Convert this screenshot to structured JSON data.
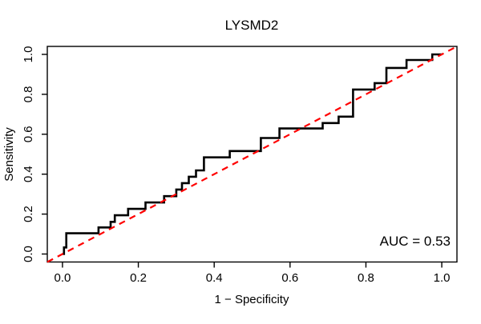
{
  "chart_data": {
    "type": "line",
    "subtype": "roc-step-curve",
    "title": "LYSMD2",
    "xlabel": "1 − Specificity",
    "ylabel": "Sensitivity",
    "xlim": [
      -0.04,
      1.04
    ],
    "ylim": [
      -0.04,
      1.04
    ],
    "grid": false,
    "legend_position": "none",
    "x_ticks": {
      "values": [
        0.0,
        0.2,
        0.4,
        0.6,
        0.8,
        1.0
      ],
      "labels": [
        "0.0",
        "0.2",
        "0.4",
        "0.6",
        "0.8",
        "1.0"
      ]
    },
    "y_ticks": {
      "values": [
        0.0,
        0.2,
        0.4,
        0.6,
        0.8,
        1.0
      ],
      "labels": [
        "0.0",
        "0.2",
        "0.4",
        "0.6",
        "0.8",
        "1.0"
      ]
    },
    "annotation": {
      "text": "AUC = 0.53",
      "anchor": "bottom-right"
    },
    "auc": 0.53,
    "colors": {
      "curve": "#000000",
      "diagonal": "#FF0000",
      "box": "#000000",
      "background": "#FFFFFF"
    },
    "series": [
      {
        "name": "roc-curve",
        "draw": "step",
        "color": "#000000",
        "line_style": "solid",
        "line_width": 2.6,
        "points": [
          [
            0.0,
            0.0
          ],
          [
            0.004,
            0.0
          ],
          [
            0.004,
            0.033
          ],
          [
            0.01,
            0.033
          ],
          [
            0.01,
            0.104
          ],
          [
            0.095,
            0.104
          ],
          [
            0.095,
            0.133
          ],
          [
            0.127,
            0.133
          ],
          [
            0.127,
            0.161
          ],
          [
            0.138,
            0.161
          ],
          [
            0.138,
            0.194
          ],
          [
            0.173,
            0.194
          ],
          [
            0.173,
            0.226
          ],
          [
            0.219,
            0.226
          ],
          [
            0.219,
            0.258
          ],
          [
            0.268,
            0.258
          ],
          [
            0.268,
            0.29
          ],
          [
            0.3,
            0.29
          ],
          [
            0.3,
            0.323
          ],
          [
            0.315,
            0.323
          ],
          [
            0.315,
            0.355
          ],
          [
            0.333,
            0.355
          ],
          [
            0.333,
            0.387
          ],
          [
            0.352,
            0.387
          ],
          [
            0.352,
            0.419
          ],
          [
            0.373,
            0.419
          ],
          [
            0.373,
            0.484
          ],
          [
            0.441,
            0.484
          ],
          [
            0.441,
            0.516
          ],
          [
            0.523,
            0.516
          ],
          [
            0.523,
            0.581
          ],
          [
            0.572,
            0.581
          ],
          [
            0.572,
            0.629
          ],
          [
            0.686,
            0.629
          ],
          [
            0.686,
            0.656
          ],
          [
            0.728,
            0.656
          ],
          [
            0.728,
            0.688
          ],
          [
            0.766,
            0.688
          ],
          [
            0.766,
            0.824
          ],
          [
            0.823,
            0.824
          ],
          [
            0.823,
            0.856
          ],
          [
            0.854,
            0.856
          ],
          [
            0.854,
            0.932
          ],
          [
            0.907,
            0.932
          ],
          [
            0.907,
            0.972
          ],
          [
            0.975,
            0.972
          ],
          [
            0.975,
            1.0
          ],
          [
            1.0,
            1.0
          ]
        ]
      },
      {
        "name": "chance-diagonal",
        "draw": "line",
        "color": "#FF0000",
        "line_style": "dashed",
        "line_width": 2.2,
        "points": [
          [
            -0.04,
            -0.04
          ],
          [
            1.04,
            1.04
          ]
        ]
      }
    ]
  }
}
